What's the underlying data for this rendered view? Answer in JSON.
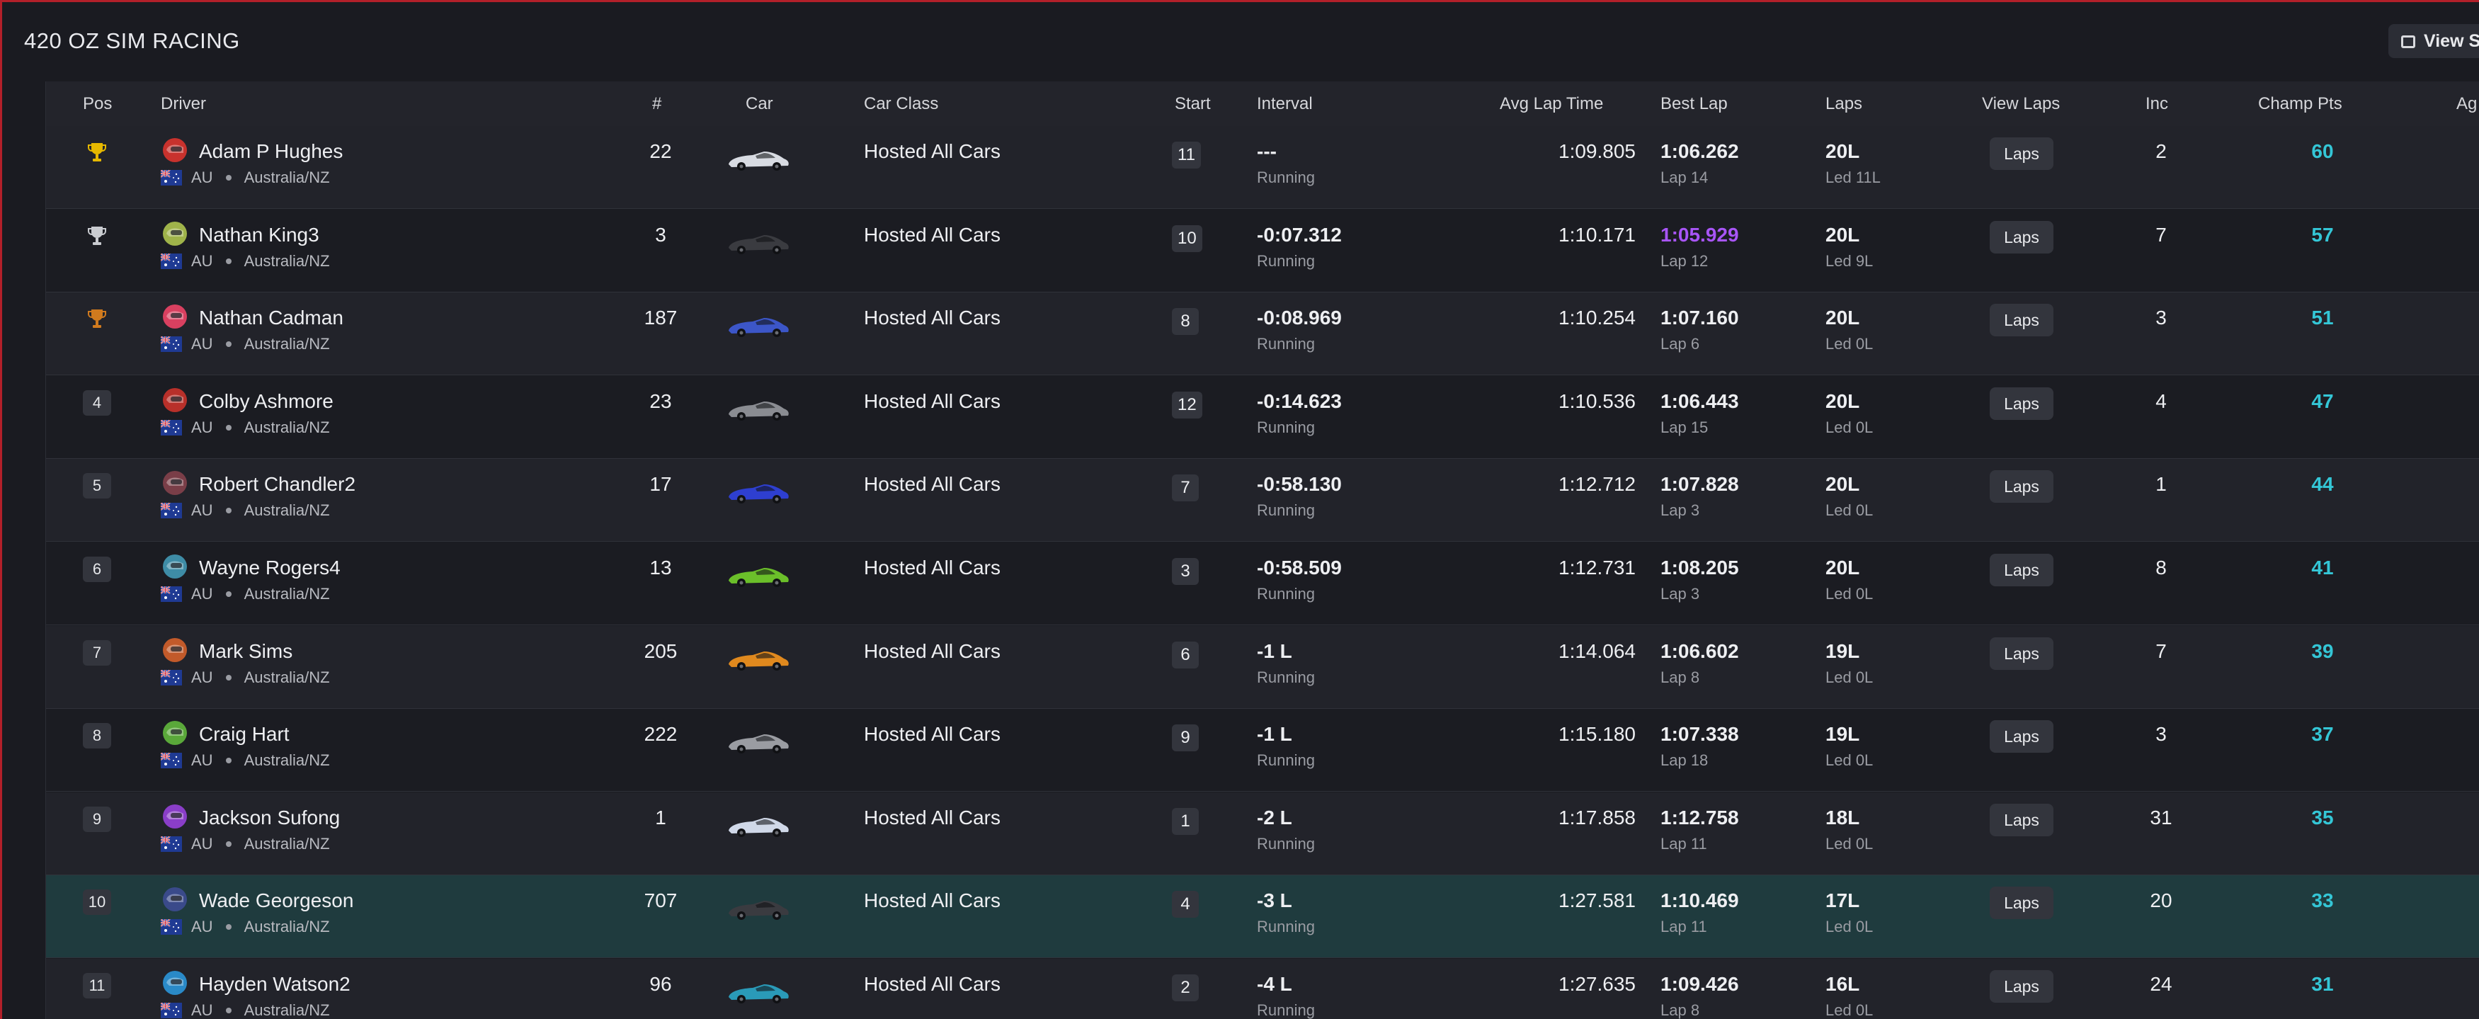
{
  "title": "420 OZ SIM RACING",
  "view_button_label": "View S",
  "columns": {
    "pos": "Pos",
    "driver": "Driver",
    "num": "#",
    "car": "Car",
    "car_class": "Car Class",
    "start": "Start",
    "interval": "Interval",
    "avg_lap": "Avg Lap Time",
    "best_lap": "Best Lap",
    "laps": "Laps",
    "view_laps": "View Laps",
    "inc": "Inc",
    "champ_pts": "Champ Pts",
    "age": "Ag"
  },
  "trophy_colors": [
    "#e6b800",
    "#c9cbd0",
    "#d07a1e"
  ],
  "rows": [
    {
      "pos": "1",
      "trophy": 0,
      "name": "Adam P Hughes",
      "country": "AU",
      "region": "Australia/NZ",
      "num": "22",
      "car_class": "Hosted All Cars",
      "start": "11",
      "interval": "---",
      "status": "Running",
      "avg": "1:09.805",
      "best": "1:06.262",
      "best_lap": "Lap 14",
      "laps": "20L",
      "led": "Led 11L",
      "laps_btn": "Laps",
      "inc": "2",
      "pts": "60",
      "helmet": "#c8322d",
      "car_color": "#d8dbe2"
    },
    {
      "pos": "2",
      "trophy": 1,
      "name": "Nathan King3",
      "country": "AU",
      "region": "Australia/NZ",
      "num": "3",
      "car_class": "Hosted All Cars",
      "start": "10",
      "interval": "-0:07.312",
      "status": "Running",
      "avg": "1:10.171",
      "best": "1:05.929",
      "best_lap": "Lap 12",
      "laps": "20L",
      "led": "Led 9L",
      "laps_btn": "Laps",
      "inc": "7",
      "pts": "57",
      "helmet": "#9fb34a",
      "car_color": "#3a3b40",
      "purple": true
    },
    {
      "pos": "3",
      "trophy": 2,
      "name": "Nathan Cadman",
      "country": "AU",
      "region": "Australia/NZ",
      "num": "187",
      "car_class": "Hosted All Cars",
      "start": "8",
      "interval": "-0:08.969",
      "status": "Running",
      "avg": "1:10.254",
      "best": "1:07.160",
      "best_lap": "Lap 6",
      "laps": "20L",
      "led": "Led 0L",
      "laps_btn": "Laps",
      "inc": "3",
      "pts": "51",
      "helmet": "#d94060",
      "car_color": "#3c56c8"
    },
    {
      "pos": "4",
      "name": "Colby Ashmore",
      "country": "AU",
      "region": "Australia/NZ",
      "num": "23",
      "car_class": "Hosted All Cars",
      "start": "12",
      "interval": "-0:14.623",
      "status": "Running",
      "avg": "1:10.536",
      "best": "1:06.443",
      "best_lap": "Lap 15",
      "laps": "20L",
      "led": "Led 0L",
      "laps_btn": "Laps",
      "inc": "4",
      "pts": "47",
      "helmet": "#b8302a",
      "car_color": "#8a8c92"
    },
    {
      "pos": "5",
      "name": "Robert Chandler2",
      "country": "AU",
      "region": "Australia/NZ",
      "num": "17",
      "car_class": "Hosted All Cars",
      "start": "7",
      "interval": "-0:58.130",
      "status": "Running",
      "avg": "1:12.712",
      "best": "1:07.828",
      "best_lap": "Lap 3",
      "laps": "20L",
      "led": "Led 0L",
      "laps_btn": "Laps",
      "inc": "1",
      "pts": "44",
      "helmet": "#7a3e48",
      "car_color": "#2e3fd0"
    },
    {
      "pos": "6",
      "name": "Wayne Rogers4",
      "country": "AU",
      "region": "Australia/NZ",
      "num": "13",
      "car_class": "Hosted All Cars",
      "start": "3",
      "interval": "-0:58.509",
      "status": "Running",
      "avg": "1:12.731",
      "best": "1:08.205",
      "best_lap": "Lap 3",
      "laps": "20L",
      "led": "Led 0L",
      "laps_btn": "Laps",
      "inc": "8",
      "pts": "41",
      "helmet": "#3e8ca6",
      "car_color": "#6bbf2a"
    },
    {
      "pos": "7",
      "name": "Mark Sims",
      "country": "AU",
      "region": "Australia/NZ",
      "num": "205",
      "car_class": "Hosted All Cars",
      "start": "6",
      "interval": "-1 L",
      "status": "Running",
      "avg": "1:14.064",
      "best": "1:06.602",
      "best_lap": "Lap 8",
      "laps": "19L",
      "led": "Led 0L",
      "laps_btn": "Laps",
      "inc": "7",
      "pts": "39",
      "helmet": "#c25a2a",
      "car_color": "#e0891e"
    },
    {
      "pos": "8",
      "name": "Craig Hart",
      "country": "AU",
      "region": "Australia/NZ",
      "num": "222",
      "car_class": "Hosted All Cars",
      "start": "9",
      "interval": "-1 L",
      "status": "Running",
      "avg": "1:15.180",
      "best": "1:07.338",
      "best_lap": "Lap 18",
      "laps": "19L",
      "led": "Led 0L",
      "laps_btn": "Laps",
      "inc": "3",
      "pts": "37",
      "helmet": "#5aa83a",
      "car_color": "#9a9ca2"
    },
    {
      "pos": "9",
      "name": "Jackson Sufong",
      "country": "AU",
      "region": "Australia/NZ",
      "num": "1",
      "car_class": "Hosted All Cars",
      "start": "1",
      "interval": "-2 L",
      "status": "Running",
      "avg": "1:17.858",
      "best": "1:12.758",
      "best_lap": "Lap 11",
      "laps": "18L",
      "led": "Led 0L",
      "laps_btn": "Laps",
      "inc": "31",
      "pts": "35",
      "helmet": "#8a3ec8",
      "car_color": "#d0d8e8"
    },
    {
      "pos": "10",
      "name": "Wade Georgeson",
      "country": "AU",
      "region": "Australia/NZ",
      "num": "707",
      "car_class": "Hosted All Cars",
      "start": "4",
      "interval": "-3 L",
      "status": "Running",
      "avg": "1:27.581",
      "best": "1:10.469",
      "best_lap": "Lap 11",
      "laps": "17L",
      "led": "Led 0L",
      "laps_btn": "Laps",
      "inc": "20",
      "pts": "33",
      "helmet": "#3a4a8a",
      "car_color": "#3a3b40",
      "highlight": true
    },
    {
      "pos": "11",
      "name": "Hayden Watson2",
      "country": "AU",
      "region": "Australia/NZ",
      "num": "96",
      "car_class": "Hosted All Cars",
      "start": "2",
      "interval": "-4 L",
      "status": "Running",
      "avg": "1:27.635",
      "best": "1:09.426",
      "best_lap": "Lap 8",
      "laps": "16L",
      "led": "Led 0L",
      "laps_btn": "Laps",
      "inc": "24",
      "pts": "31",
      "helmet": "#2a8ac8",
      "car_color": "#2a9ab8"
    }
  ]
}
